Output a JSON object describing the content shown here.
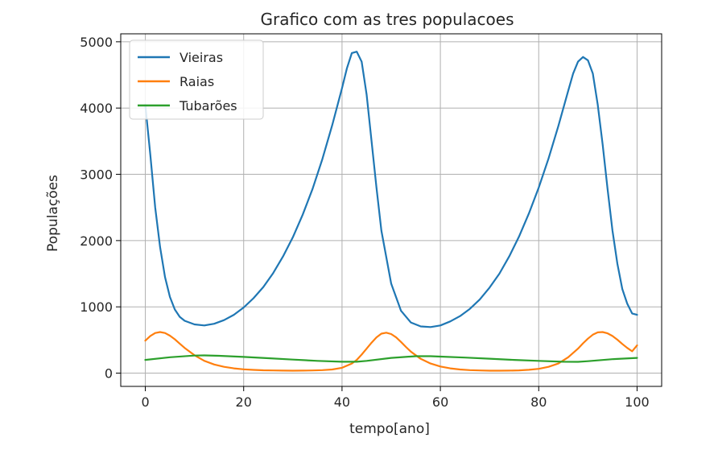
{
  "chart_data": {
    "type": "line",
    "title": "Grafico com as tres populacoes",
    "xlabel": "tempo[ano]",
    "ylabel": "Populações",
    "xlim": [
      -5,
      105
    ],
    "ylim": [
      -200,
      5120
    ],
    "xticks": [
      0,
      20,
      40,
      60,
      80,
      100
    ],
    "yticks": [
      0,
      1000,
      2000,
      3000,
      4000,
      5000
    ],
    "grid": true,
    "legend_position": "top-left",
    "series": [
      {
        "name": "Vieiras",
        "color": "#1f77b4",
        "x": [
          0,
          1,
          2,
          3,
          4,
          5,
          6,
          7,
          8,
          10,
          12,
          14,
          16,
          18,
          20,
          22,
          24,
          26,
          28,
          30,
          32,
          34,
          36,
          38,
          40,
          41,
          42,
          43,
          44,
          45,
          46,
          47,
          48,
          50,
          52,
          54,
          56,
          58,
          60,
          62,
          64,
          66,
          68,
          70,
          72,
          74,
          76,
          78,
          80,
          82,
          84,
          86,
          87,
          88,
          89,
          90,
          91,
          92,
          93,
          94,
          95,
          96,
          97,
          98,
          99,
          100
        ],
        "y": [
          4050,
          3300,
          2500,
          1900,
          1450,
          1150,
          960,
          850,
          790,
          735,
          720,
          745,
          800,
          880,
          990,
          1130,
          1300,
          1510,
          1760,
          2050,
          2390,
          2780,
          3230,
          3740,
          4300,
          4600,
          4830,
          4850,
          4700,
          4200,
          3500,
          2800,
          2150,
          1350,
          940,
          765,
          705,
          695,
          720,
          780,
          860,
          970,
          1110,
          1290,
          1500,
          1760,
          2060,
          2410,
          2800,
          3240,
          3730,
          4260,
          4520,
          4700,
          4770,
          4720,
          4520,
          4050,
          3450,
          2780,
          2150,
          1650,
          1270,
          1050,
          900,
          880
        ]
      },
      {
        "name": "Raias",
        "color": "#ff7f0e",
        "x": [
          0,
          1,
          2,
          3,
          4,
          5,
          6,
          7,
          8,
          10,
          12,
          14,
          16,
          18,
          20,
          22,
          24,
          26,
          28,
          30,
          32,
          34,
          36,
          38,
          40,
          42,
          43,
          44,
          45,
          46,
          47,
          48,
          49,
          50,
          51,
          52,
          53,
          54,
          56,
          58,
          60,
          62,
          64,
          66,
          68,
          70,
          72,
          74,
          76,
          78,
          80,
          82,
          84,
          86,
          88,
          89,
          90,
          91,
          92,
          93,
          94,
          95,
          96,
          97,
          98,
          99,
          100
        ],
        "y": [
          490,
          560,
          605,
          620,
          605,
          565,
          510,
          445,
          380,
          270,
          185,
          130,
          95,
          72,
          58,
          49,
          43,
          40,
          38,
          37,
          38,
          40,
          45,
          55,
          80,
          145,
          200,
          280,
          370,
          460,
          540,
          595,
          610,
          590,
          540,
          470,
          395,
          325,
          215,
          145,
          100,
          72,
          55,
          45,
          40,
          37,
          37,
          38,
          42,
          50,
          65,
          95,
          145,
          240,
          370,
          450,
          520,
          580,
          615,
          620,
          600,
          560,
          505,
          440,
          380,
          330,
          420
        ]
      },
      {
        "name": "Tubarões",
        "color": "#2ca02c",
        "x": [
          0,
          5,
          10,
          12,
          15,
          20,
          25,
          30,
          35,
          40,
          43,
          45,
          50,
          55,
          58,
          60,
          65,
          70,
          75,
          80,
          85,
          88,
          90,
          95,
          100
        ],
        "y": [
          200,
          240,
          265,
          268,
          262,
          245,
          225,
          205,
          185,
          172,
          172,
          185,
          230,
          255,
          255,
          250,
          235,
          218,
          200,
          185,
          172,
          170,
          180,
          210,
          230
        ]
      }
    ]
  }
}
